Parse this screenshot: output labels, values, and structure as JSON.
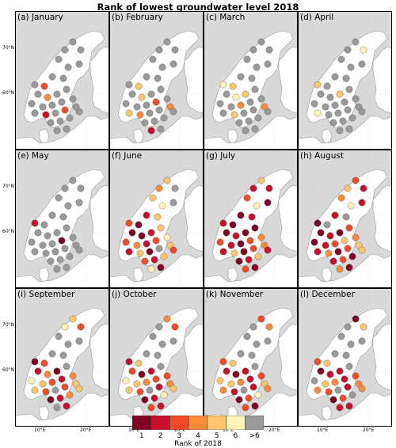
{
  "title": "Rank of lowest groundwater level 2018",
  "panels": [
    {
      "label": "(a) January",
      "ranks": [
        7,
        7,
        7,
        7,
        7,
        7,
        7,
        3,
        7,
        7,
        7,
        4,
        7,
        7,
        7,
        7,
        7,
        7,
        7,
        7,
        2,
        7,
        3,
        7,
        7,
        7,
        7,
        7,
        7,
        7
      ]
    },
    {
      "label": "(b) February",
      "ranks": [
        7,
        7,
        7,
        7,
        7,
        7,
        7,
        5,
        7,
        7,
        7,
        5,
        7,
        7,
        7,
        7,
        7,
        3,
        7,
        5,
        4,
        7,
        7,
        4,
        7,
        7,
        7,
        2,
        7,
        7
      ]
    },
    {
      "label": "(c) March",
      "ranks": [
        7,
        7,
        7,
        7,
        7,
        7,
        6,
        5,
        7,
        7,
        7,
        6,
        5,
        7,
        7,
        7,
        4,
        7,
        7,
        7,
        5,
        7,
        7,
        4,
        7,
        7,
        7,
        7,
        7,
        7
      ]
    },
    {
      "label": "(d) April",
      "ranks": [
        7,
        7,
        7,
        6,
        7,
        7,
        5,
        7,
        7,
        7,
        7,
        7,
        5,
        7,
        7,
        7,
        7,
        7,
        7,
        6,
        7,
        7,
        7,
        7,
        7,
        7,
        7,
        7,
        7,
        7
      ]
    },
    {
      "label": "(e) May",
      "ranks": [
        7,
        7,
        7,
        7,
        7,
        7,
        2,
        7,
        7,
        7,
        7,
        7,
        7,
        7,
        7,
        7,
        7,
        1,
        7,
        7,
        7,
        7,
        7,
        7,
        7,
        7,
        7,
        7,
        7,
        7
      ]
    },
    {
      "label": "(f) June",
      "ranks": [
        4,
        5,
        5,
        7,
        6,
        7,
        3,
        1,
        2,
        5,
        1,
        1,
        2,
        5,
        3,
        4,
        2,
        3,
        6,
        2,
        5,
        1,
        7,
        5,
        3,
        2,
        5,
        6,
        1,
        3
      ]
    },
    {
      "label": "(g) July",
      "ranks": [
        2,
        5,
        3,
        2,
        6,
        1,
        2,
        1,
        1,
        2,
        1,
        2,
        1,
        1,
        3,
        2,
        1,
        3,
        4,
        2,
        5,
        1,
        3,
        4,
        1,
        2,
        5,
        3,
        1,
        2
      ]
    },
    {
      "label": "(h) August",
      "ranks": [
        5,
        3,
        4,
        2,
        6,
        2,
        1,
        7,
        2,
        7,
        1,
        2,
        1,
        3,
        1,
        2,
        3,
        5,
        4,
        2,
        4,
        1,
        3,
        5,
        2,
        3,
        1,
        4,
        1,
        5
      ]
    },
    {
      "label": "(i) September",
      "ranks": [
        6,
        5,
        7,
        3,
        7,
        7,
        1,
        3,
        7,
        7,
        2,
        4,
        1,
        7,
        6,
        5,
        3,
        2,
        4,
        5,
        3,
        7,
        3,
        5,
        1,
        2,
        4,
        7,
        2,
        5
      ]
    },
    {
      "label": "(j) October",
      "ranks": [
        7,
        4,
        7,
        3,
        7,
        7,
        2,
        5,
        7,
        7,
        3,
        1,
        2,
        7,
        6,
        5,
        4,
        3,
        3,
        5,
        3,
        7,
        2,
        4,
        1,
        2,
        6,
        3,
        2,
        5
      ]
    },
    {
      "label": "(k) November",
      "ranks": [
        7,
        3,
        7,
        4,
        7,
        7,
        3,
        5,
        7,
        7,
        2,
        1,
        2,
        7,
        5,
        5,
        4,
        2,
        3,
        4,
        2,
        7,
        2,
        5,
        1,
        3,
        6,
        3,
        1,
        4
      ]
    },
    {
      "label": "(l) December",
      "ranks": [
        7,
        1,
        7,
        5,
        7,
        7,
        3,
        5,
        7,
        7,
        1,
        2,
        2,
        7,
        7,
        5,
        4,
        2,
        3,
        4,
        3,
        7,
        2,
        4,
        1,
        3,
        7,
        2,
        2,
        4
      ]
    }
  ],
  "axes": {
    "lat_labels": [
      "70°N",
      "60°N"
    ],
    "lon_labels": [
      "10°E",
      "20°E"
    ]
  },
  "colorbar": {
    "colors": [
      "#7f0222",
      "#c8102e",
      "#f14b28",
      "#fb8b3c",
      "#fdc56e",
      "#fff4b8",
      "#9a9a9a"
    ],
    "labels": [
      "1",
      "2",
      "3",
      "4",
      "5",
      "6",
      ">6"
    ],
    "title": "Rank of 2018"
  }
}
